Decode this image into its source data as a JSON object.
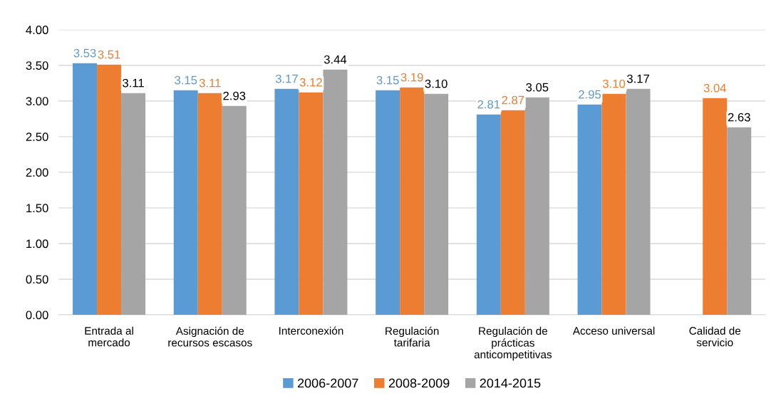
{
  "chart_data": {
    "type": "bar",
    "categories": [
      "Entrada al\nmercado",
      "Asignación de\nrecursos escasos",
      "Interconexión",
      "Regulación\ntarifaria",
      "Regulación de\nprácticas\nanticompetitivas",
      "Acceso universal",
      "Calidad de\nservicio"
    ],
    "series": [
      {
        "name": "2006-2007",
        "color": "#5b9bd5",
        "values": [
          3.53,
          3.15,
          3.17,
          3.15,
          2.81,
          2.95,
          null
        ],
        "value_labels": [
          "3.53",
          "3.15",
          "3.17",
          "3.15",
          "2.81",
          "2.95",
          null
        ]
      },
      {
        "name": "2008-2009",
        "color": "#ed7d31",
        "values": [
          3.51,
          3.11,
          3.12,
          3.19,
          2.87,
          3.1,
          3.04
        ],
        "value_labels": [
          "3.51",
          "3.11",
          "3.12",
          "3.19",
          "2.87",
          "3.10",
          "3.04"
        ]
      },
      {
        "name": "2014-2015",
        "color": "#a5a5a5",
        "values": [
          3.11,
          2.93,
          3.44,
          3.1,
          3.05,
          3.17,
          2.63
        ],
        "value_labels": [
          "3.11",
          "2.93",
          "3.44",
          "3.10",
          "3.05",
          "3.17",
          "2.63"
        ]
      }
    ],
    "ylim": [
      0,
      4
    ],
    "yticks": [
      {
        "value": 0,
        "label": "0.00"
      },
      {
        "value": 0.5,
        "label": "0.50"
      },
      {
        "value": 1,
        "label": "1.00"
      },
      {
        "value": 1.5,
        "label": "1.50"
      },
      {
        "value": 2,
        "label": "2.00"
      },
      {
        "value": 2.5,
        "label": "2.50"
      },
      {
        "value": 3,
        "label": "3.00"
      },
      {
        "value": 3.5,
        "label": "3.50"
      },
      {
        "value": 4,
        "label": "4.00"
      }
    ],
    "grid": "y",
    "legend": "bottom"
  }
}
